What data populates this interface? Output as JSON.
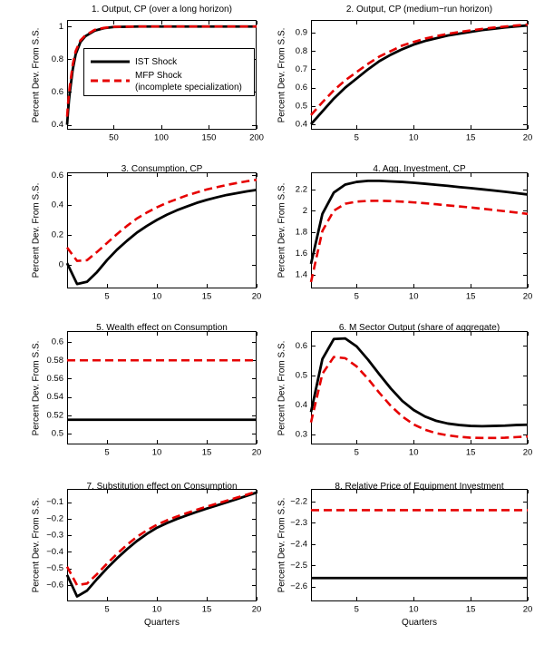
{
  "figure_name": "Impulse responses: IST vs MFP shocks",
  "colors": {
    "ist_line": "#000000",
    "mfp_line": "#e60000",
    "axis": "#000000",
    "background": "#ffffff",
    "legend_border": "#000000"
  },
  "legend": {
    "ist_label": "IST Shock",
    "mfp_label_line1": "MFP Shock",
    "mfp_label_line2": "(incomplete specialization)"
  },
  "chart_data": [
    {
      "type": "line",
      "title": "1. Output, CP (over a long horizon)",
      "ylabel": "Percent Dev. From S.S.",
      "xlabel": "",
      "xlim": [
        1,
        200
      ],
      "ylim": [
        0.37,
        1.04
      ],
      "xticks": [
        50,
        100,
        150,
        200
      ],
      "yticks": [
        0.4,
        0.6,
        0.8,
        1
      ],
      "legend": true,
      "x": [
        1,
        2,
        3,
        4,
        5,
        7,
        10,
        15,
        20,
        30,
        40,
        50,
        75,
        100,
        150,
        200
      ],
      "series": [
        {
          "name": "IST Shock",
          "color": "#000000",
          "style": "solid",
          "y": [
            0.4,
            0.48,
            0.55,
            0.605,
            0.65,
            0.74,
            0.83,
            0.905,
            0.94,
            0.975,
            0.99,
            0.997,
            1.0,
            1.0,
            1.0,
            1.0
          ]
        },
        {
          "name": "MFP Shock (incomplete specialization)",
          "color": "#e60000",
          "style": "dashed",
          "y": [
            0.45,
            0.53,
            0.59,
            0.645,
            0.685,
            0.77,
            0.85,
            0.915,
            0.945,
            0.98,
            0.992,
            0.998,
            1.0,
            1.0,
            1.0,
            1.0
          ]
        }
      ]
    },
    {
      "type": "line",
      "title": "2. Output, CP (medium−run horizon)",
      "ylabel": "Percent Dev. From S.S.",
      "xlabel": "",
      "xlim": [
        1,
        20
      ],
      "ylim": [
        0.37,
        0.97
      ],
      "xticks": [
        5,
        10,
        15,
        20
      ],
      "yticks": [
        0.4,
        0.5,
        0.6,
        0.7,
        0.8,
        0.9
      ],
      "legend": false,
      "x": [
        1,
        2,
        3,
        4,
        5,
        6,
        7,
        8,
        9,
        10,
        11,
        12,
        13,
        14,
        15,
        16,
        17,
        18,
        19,
        20
      ],
      "series": [
        {
          "name": "IST Shock",
          "color": "#000000",
          "style": "solid",
          "y": [
            0.4,
            0.47,
            0.54,
            0.6,
            0.65,
            0.7,
            0.745,
            0.78,
            0.81,
            0.835,
            0.855,
            0.87,
            0.885,
            0.895,
            0.905,
            0.915,
            0.922,
            0.929,
            0.935,
            0.94
          ]
        },
        {
          "name": "MFP Shock (incomplete specialization)",
          "color": "#e60000",
          "style": "dashed",
          "y": [
            0.45,
            0.52,
            0.585,
            0.64,
            0.685,
            0.73,
            0.77,
            0.8,
            0.83,
            0.85,
            0.868,
            0.882,
            0.894,
            0.904,
            0.913,
            0.921,
            0.928,
            0.934,
            0.94,
            0.945
          ]
        }
      ]
    },
    {
      "type": "line",
      "title": "3. Consumption, CP",
      "ylabel": "Percent Dev. From S.S.",
      "xlabel": "",
      "xlim": [
        1,
        20
      ],
      "ylim": [
        -0.16,
        0.62
      ],
      "xticks": [
        5,
        10,
        15,
        20
      ],
      "yticks": [
        0,
        0.2,
        0.4,
        0.6
      ],
      "legend": false,
      "x": [
        1,
        2,
        3,
        4,
        5,
        6,
        7,
        8,
        9,
        10,
        11,
        12,
        13,
        14,
        15,
        16,
        17,
        18,
        19,
        20
      ],
      "series": [
        {
          "name": "IST Shock",
          "color": "#000000",
          "style": "solid",
          "y": [
            0.01,
            -0.13,
            -0.115,
            -0.05,
            0.03,
            0.1,
            0.16,
            0.215,
            0.26,
            0.3,
            0.335,
            0.365,
            0.39,
            0.415,
            0.435,
            0.452,
            0.468,
            0.48,
            0.492,
            0.502
          ]
        },
        {
          "name": "MFP Shock (incomplete specialization)",
          "color": "#e60000",
          "style": "dashed",
          "y": [
            0.115,
            0.025,
            0.03,
            0.085,
            0.145,
            0.205,
            0.26,
            0.31,
            0.35,
            0.385,
            0.415,
            0.44,
            0.465,
            0.485,
            0.505,
            0.52,
            0.535,
            0.548,
            0.56,
            0.57
          ]
        }
      ]
    },
    {
      "type": "line",
      "title": "4. Agg. Investment, CP",
      "ylabel": "Percent Dev. From S.S.",
      "xlabel": "",
      "xlim": [
        1,
        20
      ],
      "ylim": [
        1.27,
        2.36
      ],
      "xticks": [
        5,
        10,
        15,
        20
      ],
      "yticks": [
        1.4,
        1.6,
        1.8,
        2,
        2.2
      ],
      "legend": false,
      "x": [
        1,
        2,
        3,
        4,
        5,
        6,
        7,
        8,
        9,
        10,
        11,
        12,
        13,
        14,
        15,
        16,
        17,
        18,
        19,
        20
      ],
      "series": [
        {
          "name": "IST Shock",
          "color": "#000000",
          "style": "solid",
          "y": [
            1.5,
            1.97,
            2.17,
            2.245,
            2.27,
            2.28,
            2.28,
            2.275,
            2.27,
            2.262,
            2.253,
            2.243,
            2.233,
            2.222,
            2.212,
            2.201,
            2.19,
            2.178,
            2.165,
            2.152
          ]
        },
        {
          "name": "MFP Shock (incomplete specialization)",
          "color": "#e60000",
          "style": "dashed",
          "y": [
            1.33,
            1.81,
            2.0,
            2.065,
            2.085,
            2.092,
            2.093,
            2.09,
            2.085,
            2.078,
            2.07,
            2.06,
            2.05,
            2.04,
            2.03,
            2.019,
            2.007,
            1.995,
            1.983,
            1.97
          ]
        }
      ]
    },
    {
      "type": "line",
      "title": "5. Wealth effect on Consumption",
      "ylabel": "Percent Dev. From S.S.",
      "xlabel": "",
      "xlim": [
        1,
        20
      ],
      "ylim": [
        0.488,
        0.612
      ],
      "xticks": [
        5,
        10,
        15,
        20
      ],
      "yticks": [
        0.5,
        0.52,
        0.54,
        0.56,
        0.58,
        0.6
      ],
      "legend": false,
      "x": [
        1,
        20
      ],
      "series": [
        {
          "name": "IST Shock",
          "color": "#000000",
          "style": "solid",
          "y": [
            0.515,
            0.515
          ]
        },
        {
          "name": "MFP Shock (incomplete specialization)",
          "color": "#e60000",
          "style": "dashed",
          "y": [
            0.58,
            0.58
          ]
        }
      ]
    },
    {
      "type": "line",
      "title": "6. M Sector Output (share of aggregate)",
      "ylabel": "Percent Dev. From S.S.",
      "xlabel": "",
      "xlim": [
        1,
        20
      ],
      "ylim": [
        0.265,
        0.65
      ],
      "xticks": [
        5,
        10,
        15,
        20
      ],
      "yticks": [
        0.3,
        0.4,
        0.5,
        0.6
      ],
      "legend": false,
      "x": [
        1,
        2,
        3,
        4,
        5,
        6,
        7,
        8,
        9,
        10,
        11,
        12,
        13,
        14,
        15,
        16,
        17,
        18,
        19,
        20
      ],
      "series": [
        {
          "name": "IST Shock",
          "color": "#000000",
          "style": "solid",
          "y": [
            0.375,
            0.555,
            0.623,
            0.625,
            0.598,
            0.553,
            0.503,
            0.455,
            0.413,
            0.382,
            0.36,
            0.345,
            0.336,
            0.331,
            0.328,
            0.327,
            0.328,
            0.329,
            0.331,
            0.332
          ]
        },
        {
          "name": "MFP Shock (incomplete specialization)",
          "color": "#e60000",
          "style": "dashed",
          "y": [
            0.34,
            0.505,
            0.562,
            0.558,
            0.53,
            0.488,
            0.44,
            0.396,
            0.36,
            0.333,
            0.315,
            0.303,
            0.296,
            0.291,
            0.288,
            0.287,
            0.287,
            0.288,
            0.29,
            0.292
          ]
        }
      ]
    },
    {
      "type": "line",
      "title": "7. Substitution effect on Consumption",
      "ylabel": "Percent Dev. From S.S.",
      "xlabel": "Quarters",
      "xlim": [
        1,
        20
      ],
      "ylim": [
        -0.7,
        -0.02
      ],
      "xticks": [
        5,
        10,
        15,
        20
      ],
      "yticks": [
        -0.6,
        -0.5,
        -0.4,
        -0.3,
        -0.2,
        -0.1
      ],
      "legend": false,
      "x": [
        1,
        2,
        3,
        4,
        5,
        6,
        7,
        8,
        9,
        10,
        11,
        12,
        13,
        14,
        15,
        16,
        17,
        18,
        19,
        20
      ],
      "series": [
        {
          "name": "IST Shock",
          "color": "#000000",
          "style": "solid",
          "y": [
            -0.54,
            -0.67,
            -0.635,
            -0.565,
            -0.5,
            -0.44,
            -0.385,
            -0.335,
            -0.292,
            -0.255,
            -0.227,
            -0.202,
            -0.18,
            -0.159,
            -0.139,
            -0.12,
            -0.101,
            -0.082,
            -0.062,
            -0.042
          ]
        },
        {
          "name": "MFP Shock (incomplete specialization)",
          "color": "#e60000",
          "style": "dashed",
          "y": [
            -0.49,
            -0.602,
            -0.592,
            -0.535,
            -0.472,
            -0.413,
            -0.358,
            -0.31,
            -0.27,
            -0.237,
            -0.21,
            -0.187,
            -0.166,
            -0.146,
            -0.127,
            -0.109,
            -0.091,
            -0.073,
            -0.055,
            -0.036
          ]
        }
      ]
    },
    {
      "type": "line",
      "title": "8. Relative Price of Equipment Investment",
      "ylabel": "Percent Dev. From S.S.",
      "xlabel": "Quarters",
      "xlim": [
        1,
        20
      ],
      "ylim": [
        -2.67,
        -2.14
      ],
      "xticks": [
        5,
        10,
        15,
        20
      ],
      "yticks": [
        -2.6,
        -2.5,
        -2.4,
        -2.3,
        -2.2
      ],
      "legend": false,
      "x": [
        1,
        20
      ],
      "series": [
        {
          "name": "IST Shock",
          "color": "#000000",
          "style": "solid",
          "y": [
            -2.56,
            -2.56
          ]
        },
        {
          "name": "MFP Shock (incomplete specialization)",
          "color": "#e60000",
          "style": "dashed",
          "y": [
            -2.24,
            -2.24
          ]
        }
      ]
    }
  ]
}
